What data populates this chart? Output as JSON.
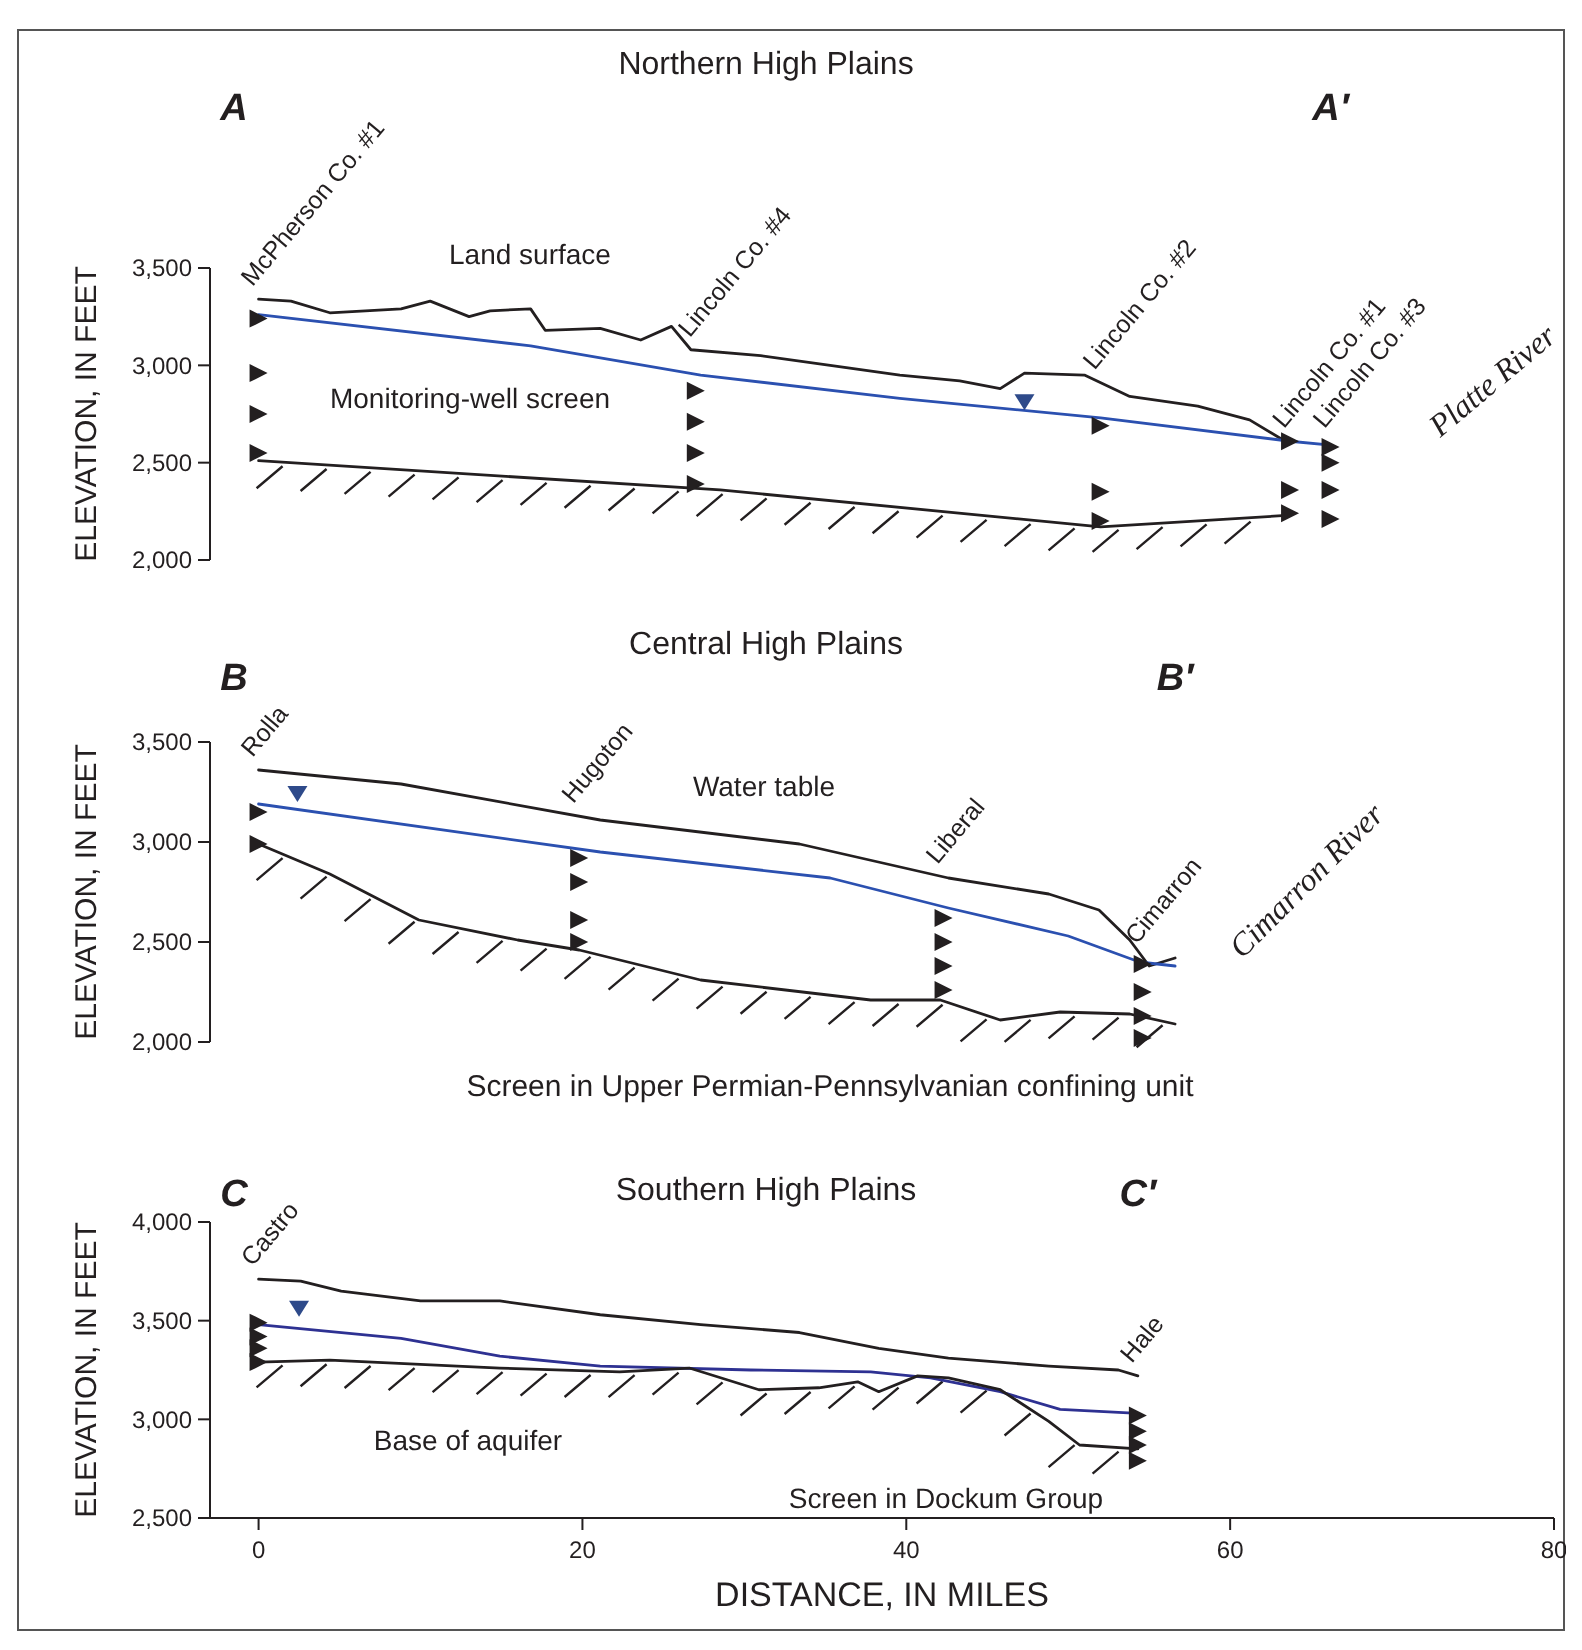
{
  "chart_data": [
    {
      "type": "line",
      "title": "Northern High Plains",
      "ylabel": "ELEVATION, IN FEET",
      "xlim": [
        -3,
        80
      ],
      "ylim": [
        2000,
        3500
      ],
      "yticks": [
        {
          "value": 2000,
          "label": "2,000"
        },
        {
          "value": 2500,
          "label": "2,500"
        },
        {
          "value": 3000,
          "label": "3,000"
        },
        {
          "value": 3500,
          "label": "3,500"
        }
      ],
      "tick_labels": "y",
      "annotations": [
        "A",
        "A′",
        "Land surface",
        "Monitoring-well screen",
        "Platte River"
      ],
      "series": [
        {
          "color": "#231f20",
          "x": [
            0,
            2,
            4.4,
            8.8,
            10.6,
            13,
            14.3,
            16.8,
            17.7,
            21.1,
            23.6,
            25.5,
            26.7,
            31,
            35.3,
            39.6,
            43.3,
            45.8,
            47.3,
            51,
            53.8,
            58,
            61.2,
            63.4
          ],
          "values": [
            3340,
            3330,
            3270,
            3290,
            3330,
            3250,
            3280,
            3290,
            3180,
            3190,
            3130,
            3200,
            3080,
            3050,
            3000,
            2950,
            2920,
            2880,
            2960,
            2950,
            2840,
            2790,
            2720,
            2610
          ]
        },
        {
          "color": "#2b50b0",
          "x": [
            0,
            16.8,
            27.3,
            39.6,
            52,
            63.7,
            66.2
          ],
          "values": [
            3260,
            3100,
            2950,
            2830,
            2730,
            2610,
            2590
          ]
        },
        {
          "color": "#231f20",
          "x": [
            0,
            28.5,
            52,
            63.7
          ],
          "values": [
            2510,
            2360,
            2170,
            2230
          ]
        },
        {
          "type": "scatter",
          "marker": "triangle",
          "color": "#2e4a8a",
          "x": [
            47.3
          ],
          "values": [
            2810
          ]
        },
        {
          "type": "scatter",
          "marker": "triangle",
          "name": "McPherson Co. #1",
          "color": "#231f20",
          "x": [
            0,
            0,
            0,
            0
          ],
          "values": [
            3240,
            2960,
            2750,
            2550
          ]
        },
        {
          "type": "scatter",
          "marker": "triangle",
          "name": "Lincoln Co. #4",
          "color": "#231f20",
          "x": [
            27,
            27,
            27,
            27
          ],
          "values": [
            2870,
            2710,
            2550,
            2390
          ]
        },
        {
          "type": "scatter",
          "marker": "triangle",
          "name": "Lincoln Co. #2",
          "color": "#231f20",
          "x": [
            52,
            52,
            52
          ],
          "values": [
            2690,
            2350,
            2200
          ]
        },
        {
          "type": "scatter",
          "marker": "triangle",
          "name": "Lincoln Co. #1",
          "color": "#231f20",
          "x": [
            63.7,
            63.7,
            63.7
          ],
          "values": [
            2610,
            2360,
            2240
          ]
        },
        {
          "type": "scatter",
          "marker": "triangle",
          "name": "Lincoln Co. #3",
          "color": "#231f20",
          "x": [
            66.2,
            66.2,
            66.2,
            66.2
          ],
          "values": [
            2580,
            2500,
            2360,
            2210
          ]
        }
      ]
    },
    {
      "type": "line",
      "title": "Central High Plains",
      "ylabel": "ELEVATION, IN FEET",
      "xlim": [
        -3,
        80
      ],
      "ylim": [
        2000,
        3500
      ],
      "yticks": [
        {
          "value": 2000,
          "label": "2,000"
        },
        {
          "value": 2500,
          "label": "2,500"
        },
        {
          "value": 3000,
          "label": "3,000"
        },
        {
          "value": 3500,
          "label": "3,500"
        }
      ],
      "tick_labels": "y",
      "annotations": [
        "B",
        "B′",
        "Screen in Upper Permian-Pennsylvanian confining unit",
        "Water table",
        "Cimarron River"
      ],
      "series": [
        {
          "color": "#231f20",
          "x": [
            0,
            8.8,
            21.1,
            33.4,
            42.6,
            48.8,
            51.9,
            53.8,
            55,
            56.6
          ],
          "values": [
            3360,
            3290,
            3110,
            2990,
            2820,
            2740,
            2660,
            2510,
            2380,
            2420
          ]
        },
        {
          "color": "#2b50b0",
          "x": [
            0,
            21.1,
            35.3,
            42.6,
            50,
            54.4,
            56.6
          ],
          "values": [
            3190,
            2950,
            2820,
            2670,
            2530,
            2400,
            2380
          ]
        },
        {
          "color": "#231f20",
          "x": [
            0,
            4.4,
            9.9,
            16,
            19.8,
            27.3,
            37.8,
            42.1,
            45.8,
            49.5,
            53.8,
            56.6
          ],
          "values": [
            2990,
            2840,
            2610,
            2510,
            2460,
            2310,
            2210,
            2210,
            2110,
            2150,
            2140,
            2090
          ]
        },
        {
          "type": "scatter",
          "marker": "triangle",
          "color": "#2e4a8a",
          "x": [
            2.4
          ],
          "values": [
            3240
          ]
        },
        {
          "type": "scatter",
          "marker": "triangle",
          "name": "Rolla",
          "color": "#231f20",
          "x": [
            0,
            0
          ],
          "values": [
            3150,
            2990
          ]
        },
        {
          "type": "scatter",
          "marker": "triangle",
          "name": "Hugoton",
          "color": "#231f20",
          "x": [
            19.8,
            19.8,
            19.8,
            19.8
          ],
          "values": [
            2920,
            2800,
            2610,
            2500
          ]
        },
        {
          "type": "scatter",
          "marker": "triangle",
          "name": "Liberal",
          "color": "#231f20",
          "x": [
            42.3,
            42.3,
            42.3,
            42.3
          ],
          "values": [
            2620,
            2500,
            2380,
            2260
          ]
        },
        {
          "type": "scatter",
          "marker": "triangle",
          "name": "Cimarron",
          "color": "#231f20",
          "x": [
            54.6,
            54.6,
            54.6,
            54.6
          ],
          "values": [
            2390,
            2250,
            2130,
            2020
          ]
        }
      ]
    },
    {
      "type": "line",
      "title": "Southern High Plains",
      "xlabel": "DISTANCE, IN MILES",
      "ylabel": "ELEVATION, IN FEET",
      "xlim": [
        -3,
        80
      ],
      "xticks": [
        0,
        20,
        40,
        60,
        80
      ],
      "ylim": [
        2500,
        4000
      ],
      "yticks": [
        {
          "value": 2500,
          "label": "2,500"
        },
        {
          "value": 3000,
          "label": "3,000"
        },
        {
          "value": 3500,
          "label": "3,500"
        },
        {
          "value": 4000,
          "label": "4,000"
        }
      ],
      "annotations": [
        "C",
        "C′",
        "Base of aquifer",
        "Screen in Dockum Group"
      ],
      "series": [
        {
          "color": "#231f20",
          "x": [
            0,
            2.6,
            5.1,
            10,
            14.9,
            21.1,
            27.3,
            33.4,
            38.3,
            42.6,
            48.8,
            53.1,
            54.3
          ],
          "values": [
            3710,
            3700,
            3650,
            3600,
            3600,
            3530,
            3480,
            3440,
            3360,
            3310,
            3270,
            3250,
            3220
          ]
        },
        {
          "color": "#2e3192",
          "x": [
            0,
            8.8,
            14.9,
            21.1,
            30.4,
            37.8,
            41.5,
            45.8,
            49.5,
            54.3
          ],
          "values": [
            3480,
            3410,
            3320,
            3270,
            3250,
            3240,
            3210,
            3140,
            3050,
            3030
          ]
        },
        {
          "color": "#231f20",
          "x": [
            0,
            4.4,
            14.9,
            22.3,
            26.6,
            30.9,
            34.6,
            37,
            38.3,
            40.7,
            42.6,
            45.8,
            48.8,
            50.7,
            54.3
          ],
          "values": [
            3290,
            3300,
            3260,
            3240,
            3260,
            3150,
            3160,
            3190,
            3140,
            3220,
            3210,
            3150,
            2990,
            2870,
            2850
          ]
        },
        {
          "type": "scatter",
          "marker": "triangle",
          "color": "#2e4a8a",
          "x": [
            2.5
          ],
          "values": [
            3560
          ]
        },
        {
          "type": "scatter",
          "marker": "triangle",
          "name": "Castro",
          "color": "#231f20",
          "x": [
            0,
            0,
            0,
            0
          ],
          "values": [
            3490,
            3420,
            3360,
            3290
          ]
        },
        {
          "type": "scatter",
          "marker": "triangle",
          "name": "Hale",
          "color": "#231f20",
          "x": [
            54.3,
            54.3,
            54.3,
            54.3
          ],
          "values": [
            3020,
            2940,
            2870,
            2790
          ]
        }
      ]
    }
  ]
}
